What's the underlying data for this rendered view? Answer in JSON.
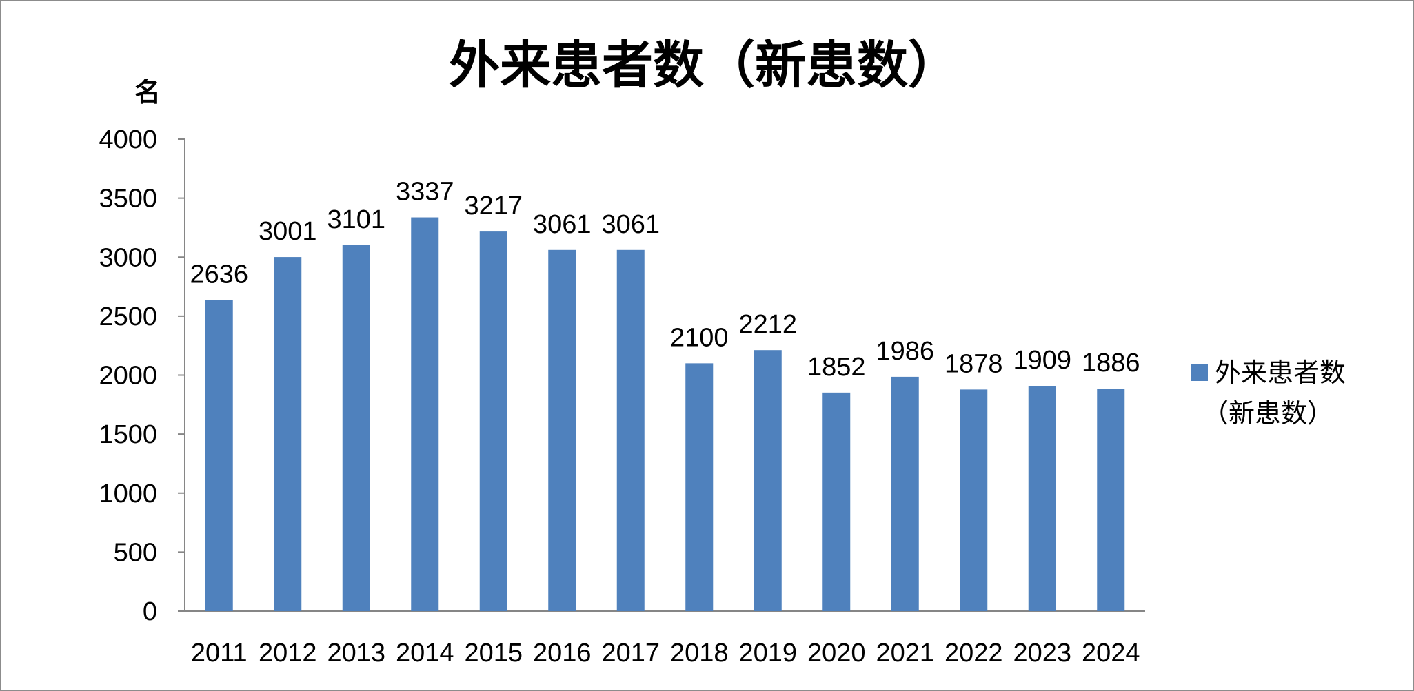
{
  "chart_data": {
    "type": "bar",
    "title": "外来患者数（新患数）",
    "ylabel": "名",
    "xlabel": "",
    "categories": [
      "2011",
      "2012",
      "2013",
      "2014",
      "2015",
      "2016",
      "2017",
      "2018",
      "2019",
      "2020",
      "2021",
      "2022",
      "2023",
      "2024"
    ],
    "series": [
      {
        "name": "外来患者数（新患数）",
        "legend_lines": [
          "外来患者数",
          "（新患数）"
        ],
        "color": "#4f81bd",
        "values": [
          2636,
          3001,
          3101,
          3337,
          3217,
          3061,
          3061,
          2100,
          2212,
          1852,
          1986,
          1878,
          1909,
          1886
        ]
      }
    ],
    "ylim": [
      0,
      4000
    ],
    "yticks": [
      0,
      500,
      1000,
      1500,
      2000,
      2500,
      3000,
      3500,
      4000
    ],
    "grid": false,
    "legend_position": "right",
    "data_labels": true
  }
}
